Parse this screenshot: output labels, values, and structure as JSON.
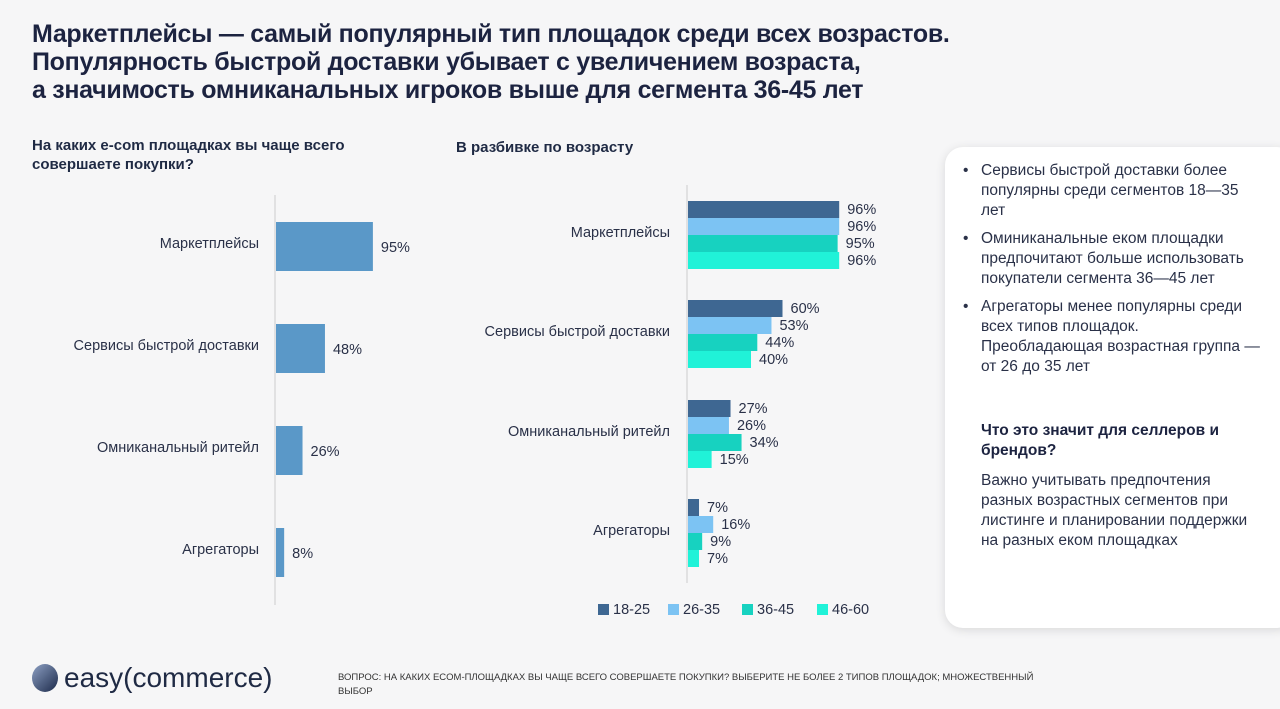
{
  "title": [
    "Маркетплейсы — самый популярный тип площадок среди всех возрастов.",
    "Популярность быстрой доставки убывает с увеличением возраста,",
    "а значимость омниканальных игроков выше для сегмента 36-45 лет"
  ],
  "chart_data": [
    {
      "type": "bar",
      "orientation": "horizontal",
      "title": "На каких e-com площадках вы чаще всего совершаете покупки?",
      "categories": [
        "Маркетплейсы",
        "Сервисы быстрой доставки",
        "Омниканальный ритейл",
        "Агрегаторы"
      ],
      "values": [
        95,
        48,
        26,
        8
      ],
      "labels": [
        "95%",
        "48%",
        "26%",
        "8%"
      ],
      "color": "#5a98c8",
      "xlim": [
        0,
        100
      ]
    },
    {
      "type": "bar",
      "orientation": "horizontal",
      "title": "В разбивке по возрасту",
      "categories": [
        "Маркетплейсы",
        "Сервисы быстрой доставки",
        "Омниканальный ритейл",
        "Агрегаторы"
      ],
      "legend": "bottom",
      "xlim": [
        0,
        100
      ],
      "series": [
        {
          "name": "18-25",
          "color": "#3e6792",
          "values": [
            96,
            60,
            27,
            7
          ]
        },
        {
          "name": "26-35",
          "color": "#7cc3f3",
          "values": [
            96,
            53,
            26,
            16
          ]
        },
        {
          "name": "36-45",
          "color": "#17d2c0",
          "values": [
            95,
            44,
            34,
            9
          ]
        },
        {
          "name": "46-60",
          "color": "#20f2d8",
          "values": [
            96,
            40,
            15,
            7
          ]
        }
      ]
    }
  ],
  "card": {
    "bullets": [
      "Сервисы быстрой доставки более популярны среди сегментов 18—35 лет",
      "Оминиканальные еком площадки предпочитают больше использовать покупатели сегмента 36—45 лет",
      "Агрегаторы менее популярны среди всех типов площадок. Преобладающая возрастная группа — от 26 до 35 лет"
    ],
    "heading": "Что это значит для селлеров и брендов?",
    "text": "Важно учитывать предпочтения разных возрастных сегментов при листинге и планировании поддержки на разных еком площадках"
  },
  "logo": {
    "text": "easy(commerce)"
  },
  "footnote": "ВОПРОС: НА КАКИХ ECOM-ПЛОЩАДКАХ ВЫ ЧАЩЕ ВСЕГО СОВЕРШАЕТЕ ПОКУПКИ? ВЫБЕРИТЕ НЕ БОЛЕЕ 2 ТИПОВ ПЛОЩАДОК; МНОЖЕСТВЕННЫЙ ВЫБОР"
}
